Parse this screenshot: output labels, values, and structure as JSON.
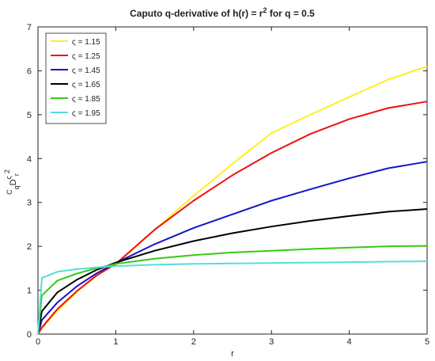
{
  "chart_data": {
    "type": "line",
    "title": "Caputo q-derivative of h(r) = r",
    "title_superscript": "2",
    "title_suffix": " for q = 0.5",
    "xlabel": "r",
    "ylabel": {
      "pre_sup": "C",
      "pre_sub": "q",
      "main": "D",
      "sup": "ς",
      "sub": "r",
      "arg_sup": "2"
    },
    "xlim": [
      0,
      5
    ],
    "ylim": [
      0,
      7
    ],
    "xticks": [
      "0",
      "1",
      "2",
      "3",
      "4",
      "5"
    ],
    "yticks": [
      "0",
      "1",
      "2",
      "3",
      "4",
      "5",
      "6",
      "7"
    ],
    "grid": false,
    "legend_position": "top-left",
    "x": [
      0.05,
      0.25,
      0.5,
      0.75,
      1.0,
      1.5,
      2.0,
      2.5,
      3.0,
      3.5,
      4.0,
      4.5,
      5.0
    ],
    "series": [
      {
        "name": "ς = 1.15",
        "color": "#ffee22",
        "values": [
          0.13,
          0.53,
          0.96,
          1.36,
          1.58,
          2.38,
          3.15,
          3.88,
          4.58,
          5.0,
          5.4,
          5.8,
          6.1
        ]
      },
      {
        "name": "ς = 1.25",
        "color": "#ee1111",
        "values": [
          0.15,
          0.57,
          0.98,
          1.33,
          1.6,
          2.38,
          3.04,
          3.62,
          4.13,
          4.56,
          4.9,
          5.15,
          5.3
        ]
      },
      {
        "name": "ς = 1.45",
        "color": "#1515cc",
        "values": [
          0.32,
          0.72,
          1.09,
          1.38,
          1.62,
          2.05,
          2.42,
          2.73,
          3.04,
          3.3,
          3.55,
          3.78,
          3.93
        ]
      },
      {
        "name": "ς = 1.65",
        "color": "#000000",
        "values": [
          0.52,
          0.95,
          1.24,
          1.46,
          1.63,
          1.9,
          2.12,
          2.3,
          2.45,
          2.58,
          2.69,
          2.79,
          2.85
        ]
      },
      {
        "name": "ς = 1.85",
        "color": "#33cc11",
        "values": [
          0.88,
          1.22,
          1.38,
          1.5,
          1.6,
          1.72,
          1.8,
          1.86,
          1.9,
          1.94,
          1.97,
          2.0,
          2.01
        ]
      },
      {
        "name": "ς = 1.95",
        "color": "#55dddd",
        "values": [
          1.28,
          1.42,
          1.48,
          1.52,
          1.55,
          1.58,
          1.6,
          1.61,
          1.62,
          1.63,
          1.64,
          1.65,
          1.66
        ]
      }
    ]
  }
}
